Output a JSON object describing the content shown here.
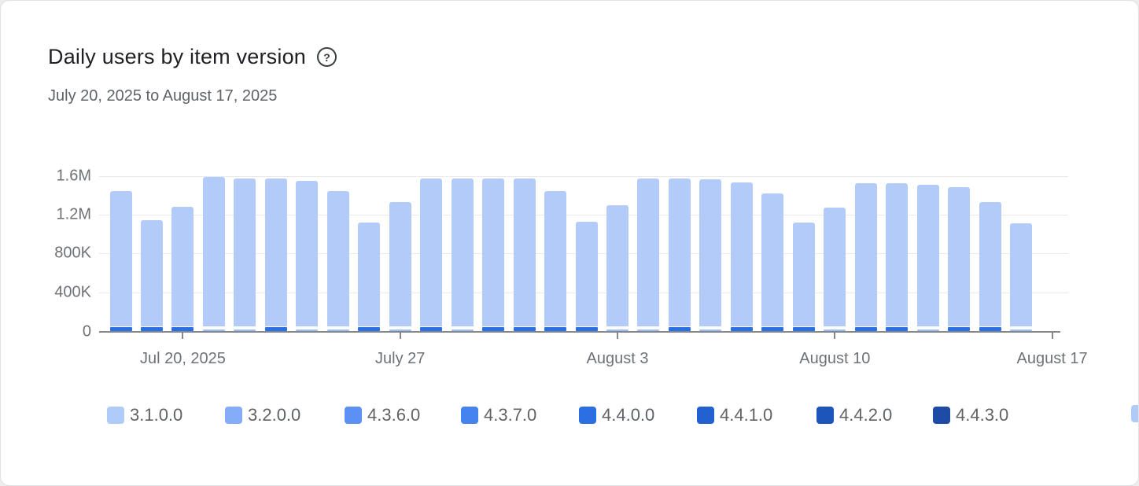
{
  "header": {
    "title": "Daily users by item version",
    "date_range": "July 20, 2025 to August 17, 2025",
    "help_icon_glyph": "?"
  },
  "chart_data": {
    "type": "bar",
    "stacked": true,
    "title": "Daily users by item version",
    "xlabel": "",
    "ylabel": "",
    "ylim": [
      0,
      1600000
    ],
    "grid": "horizontal",
    "legend_position": "bottom",
    "y_ticks": [
      {
        "label": "0",
        "value": 0
      },
      {
        "label": "400K",
        "value": 400000
      },
      {
        "label": "800K",
        "value": 800000
      },
      {
        "label": "1.2M",
        "value": 1200000
      },
      {
        "label": "1.6M",
        "value": 1600000
      }
    ],
    "x_ticks": [
      {
        "label": "Jul 20, 2025",
        "day_index": 2
      },
      {
        "label": "July 27",
        "day_index": 9
      },
      {
        "label": "August 3",
        "day_index": 16
      },
      {
        "label": "August 10",
        "day_index": 23
      },
      {
        "label": "August 17",
        "day_index": 30
      }
    ],
    "legend": [
      {
        "label": "3.1.0.0",
        "color": "#aecbfa"
      },
      {
        "label": "3.2.0.0",
        "color": "#85acf6"
      },
      {
        "label": "4.3.6.0",
        "color": "#5c90f2"
      },
      {
        "label": "4.3.7.0",
        "color": "#4583ee"
      },
      {
        "label": "4.4.0.0",
        "color": "#2c6fe2"
      },
      {
        "label": "4.4.1.0",
        "color": "#2161d0"
      },
      {
        "label": "4.4.2.0",
        "color": "#1e55bb"
      },
      {
        "label": "4.4.3.0",
        "color": "#1d4ba6"
      },
      {
        "label": "",
        "color": "#aecbfa",
        "clipped": true
      }
    ],
    "segment_colors": {
      "main": "#b2cbf8",
      "base_dark": "#2c6fe2",
      "base_light": "#9cbbf8"
    },
    "base_segment_values": {
      "dark": 40000,
      "light": 20000
    },
    "days": [
      {
        "date": "2025-07-18",
        "total": 1440000,
        "base": "dark"
      },
      {
        "date": "2025-07-19",
        "total": 1140000,
        "base": "dark"
      },
      {
        "date": "2025-07-20",
        "total": 1280000,
        "base": "dark"
      },
      {
        "date": "2025-07-21",
        "total": 1590000,
        "base": "light"
      },
      {
        "date": "2025-07-22",
        "total": 1570000,
        "base": "light"
      },
      {
        "date": "2025-07-23",
        "total": 1570000,
        "base": "dark"
      },
      {
        "date": "2025-07-24",
        "total": 1550000,
        "base": "light"
      },
      {
        "date": "2025-07-25",
        "total": 1440000,
        "base": "light"
      },
      {
        "date": "2025-07-26",
        "total": 1120000,
        "base": "dark"
      },
      {
        "date": "2025-07-27",
        "total": 1330000,
        "base": "light"
      },
      {
        "date": "2025-07-28",
        "total": 1570000,
        "base": "dark"
      },
      {
        "date": "2025-07-29",
        "total": 1570000,
        "base": "light"
      },
      {
        "date": "2025-07-30",
        "total": 1570000,
        "base": "dark"
      },
      {
        "date": "2025-07-31",
        "total": 1570000,
        "base": "dark"
      },
      {
        "date": "2025-08-01",
        "total": 1440000,
        "base": "dark"
      },
      {
        "date": "2025-08-02",
        "total": 1130000,
        "base": "dark"
      },
      {
        "date": "2025-08-03",
        "total": 1300000,
        "base": "light"
      },
      {
        "date": "2025-08-04",
        "total": 1570000,
        "base": "light"
      },
      {
        "date": "2025-08-05",
        "total": 1570000,
        "base": "dark"
      },
      {
        "date": "2025-08-06",
        "total": 1560000,
        "base": "light"
      },
      {
        "date": "2025-08-07",
        "total": 1530000,
        "base": "dark"
      },
      {
        "date": "2025-08-08",
        "total": 1420000,
        "base": "dark"
      },
      {
        "date": "2025-08-09",
        "total": 1120000,
        "base": "dark"
      },
      {
        "date": "2025-08-10",
        "total": 1270000,
        "base": "light"
      },
      {
        "date": "2025-08-11",
        "total": 1520000,
        "base": "dark"
      },
      {
        "date": "2025-08-12",
        "total": 1520000,
        "base": "dark"
      },
      {
        "date": "2025-08-13",
        "total": 1510000,
        "base": "light"
      },
      {
        "date": "2025-08-14",
        "total": 1480000,
        "base": "dark"
      },
      {
        "date": "2025-08-15",
        "total": 1330000,
        "base": "dark"
      },
      {
        "date": "2025-08-16",
        "total": 1110000,
        "base": "light"
      }
    ]
  }
}
